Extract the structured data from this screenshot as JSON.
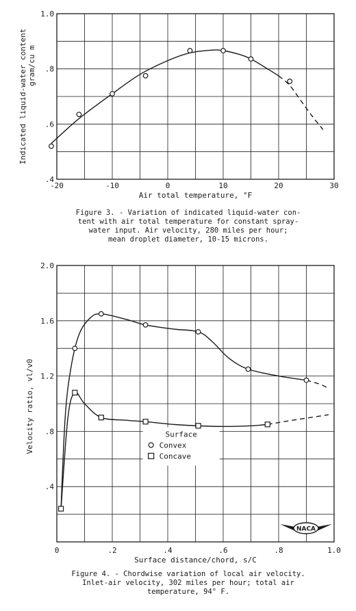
{
  "chart_data": [
    {
      "type": "scatter",
      "title": "",
      "caption_lines": [
        "Figure 3. - Variation of indicated liquid-water con-",
        "tent with air total temperature for constant spray-",
        "water input.  Air velocity, 280 miles per hour;",
        "mean droplet diameter, 10-15 microns."
      ],
      "xlabel": "Air total temperature, °F",
      "ylabel_line1": "Indicated liquid-water content",
      "ylabel_line2": "gram/cu m",
      "xlim": [
        -20,
        30
      ],
      "ylim": [
        0.4,
        1.0
      ],
      "x_ticks": [
        "-20",
        "-10",
        "0",
        "10",
        "20",
        "30"
      ],
      "y_ticks": [
        ".4",
        ".6",
        ".8",
        "1.0"
      ],
      "x_tick_values": [
        -20,
        -10,
        0,
        10,
        20,
        30
      ],
      "y_tick_values": [
        0.4,
        0.6,
        0.8,
        1.0
      ],
      "x_grid": [
        -20,
        -15,
        -10,
        -5,
        0,
        5,
        10,
        15,
        20,
        25,
        30
      ],
      "y_grid": [
        0.4,
        0.5,
        0.6,
        0.7,
        0.8,
        0.9,
        1.0
      ],
      "series": [
        {
          "marker": "circle",
          "points": [
            [
              -21,
              0.52
            ],
            [
              -16,
              0.635
            ],
            [
              -10,
              0.71
            ],
            [
              -4,
              0.775
            ],
            [
              4,
              0.866
            ],
            [
              10,
              0.866
            ],
            [
              15,
              0.836
            ],
            [
              22,
              0.755
            ]
          ],
          "curve": [
            [
              -21,
              0.53
            ],
            [
              -16,
              0.62
            ],
            [
              -10,
              0.71
            ],
            [
              -5,
              0.78
            ],
            [
              0,
              0.83
            ],
            [
              4,
              0.858
            ],
            [
              8,
              0.868
            ],
            [
              10,
              0.866
            ],
            [
              13,
              0.852
            ],
            [
              15,
              0.836
            ],
            [
              18,
              0.8
            ],
            [
              20,
              0.775
            ]
          ],
          "curve_dashed": [
            [
              20,
              0.775
            ],
            [
              22,
              0.74
            ],
            [
              24,
              0.685
            ],
            [
              26,
              0.63
            ],
            [
              28,
              0.58
            ]
          ]
        }
      ]
    },
    {
      "type": "line",
      "title": "",
      "caption_lines": [
        "Figure 4. - Chordwise variation of local air velocity.",
        "Inlet-air velocity, 302 miles per hour; total air",
        "temperature, 94° F."
      ],
      "xlabel": "Surface distance/chord, s/C",
      "ylabel": "Velocity ratio, vl/v0",
      "xlim": [
        0,
        1.0
      ],
      "ylim": [
        0,
        2.0
      ],
      "x_ticks": [
        "0",
        ".2",
        ".4",
        ".6",
        ".8",
        "1.0"
      ],
      "y_ticks": [
        ".4",
        ".8",
        "1.2",
        "1.6",
        "2.0"
      ],
      "x_tick_values": [
        0,
        0.2,
        0.4,
        0.6,
        0.8,
        1.0
      ],
      "y_tick_values": [
        0.4,
        0.8,
        1.2,
        1.6,
        2.0
      ],
      "x_grid": [
        0,
        0.1,
        0.2,
        0.3,
        0.4,
        0.5,
        0.6,
        0.7,
        0.8,
        0.9,
        1.0
      ],
      "y_grid": [
        0,
        0.2,
        0.4,
        0.6,
        0.8,
        1.0,
        1.2,
        1.4,
        1.6,
        1.8,
        2.0
      ],
      "legend_title": "Surface",
      "legend_placement": "center",
      "logo_text": "NACA",
      "series": [
        {
          "name": "Convex",
          "marker": "circle",
          "points": [
            [
              0.065,
              1.4
            ],
            [
              0.16,
              1.65
            ],
            [
              0.32,
              1.57
            ],
            [
              0.51,
              1.52
            ],
            [
              0.69,
              1.25
            ],
            [
              0.9,
              1.17
            ]
          ],
          "curve": [
            [
              0.015,
              0.24
            ],
            [
              0.03,
              0.9
            ],
            [
              0.05,
              1.25
            ],
            [
              0.08,
              1.5
            ],
            [
              0.12,
              1.62
            ],
            [
              0.16,
              1.65
            ],
            [
              0.25,
              1.61
            ],
            [
              0.32,
              1.57
            ],
            [
              0.42,
              1.54
            ],
            [
              0.51,
              1.52
            ],
            [
              0.56,
              1.45
            ],
            [
              0.62,
              1.33
            ],
            [
              0.69,
              1.25
            ],
            [
              0.8,
              1.2
            ],
            [
              0.9,
              1.17
            ]
          ],
          "curve_dashed": [
            [
              0.9,
              1.17
            ],
            [
              0.95,
              1.14
            ],
            [
              0.98,
              1.11
            ]
          ]
        },
        {
          "name": "Concave",
          "marker": "square",
          "points": [
            [
              0.015,
              0.24
            ],
            [
              0.065,
              1.08
            ],
            [
              0.16,
              0.9
            ],
            [
              0.32,
              0.87
            ],
            [
              0.51,
              0.84
            ],
            [
              0.76,
              0.85
            ]
          ],
          "curve": [
            [
              0.015,
              0.24
            ],
            [
              0.04,
              0.9
            ],
            [
              0.065,
              1.08
            ],
            [
              0.1,
              1.0
            ],
            [
              0.16,
              0.9
            ],
            [
              0.25,
              0.88
            ],
            [
              0.32,
              0.87
            ],
            [
              0.42,
              0.85
            ],
            [
              0.51,
              0.84
            ],
            [
              0.6,
              0.835
            ],
            [
              0.7,
              0.84
            ],
            [
              0.76,
              0.85
            ]
          ],
          "curve_dashed": [
            [
              0.76,
              0.85
            ],
            [
              0.85,
              0.88
            ],
            [
              0.98,
              0.92
            ]
          ]
        }
      ]
    }
  ]
}
